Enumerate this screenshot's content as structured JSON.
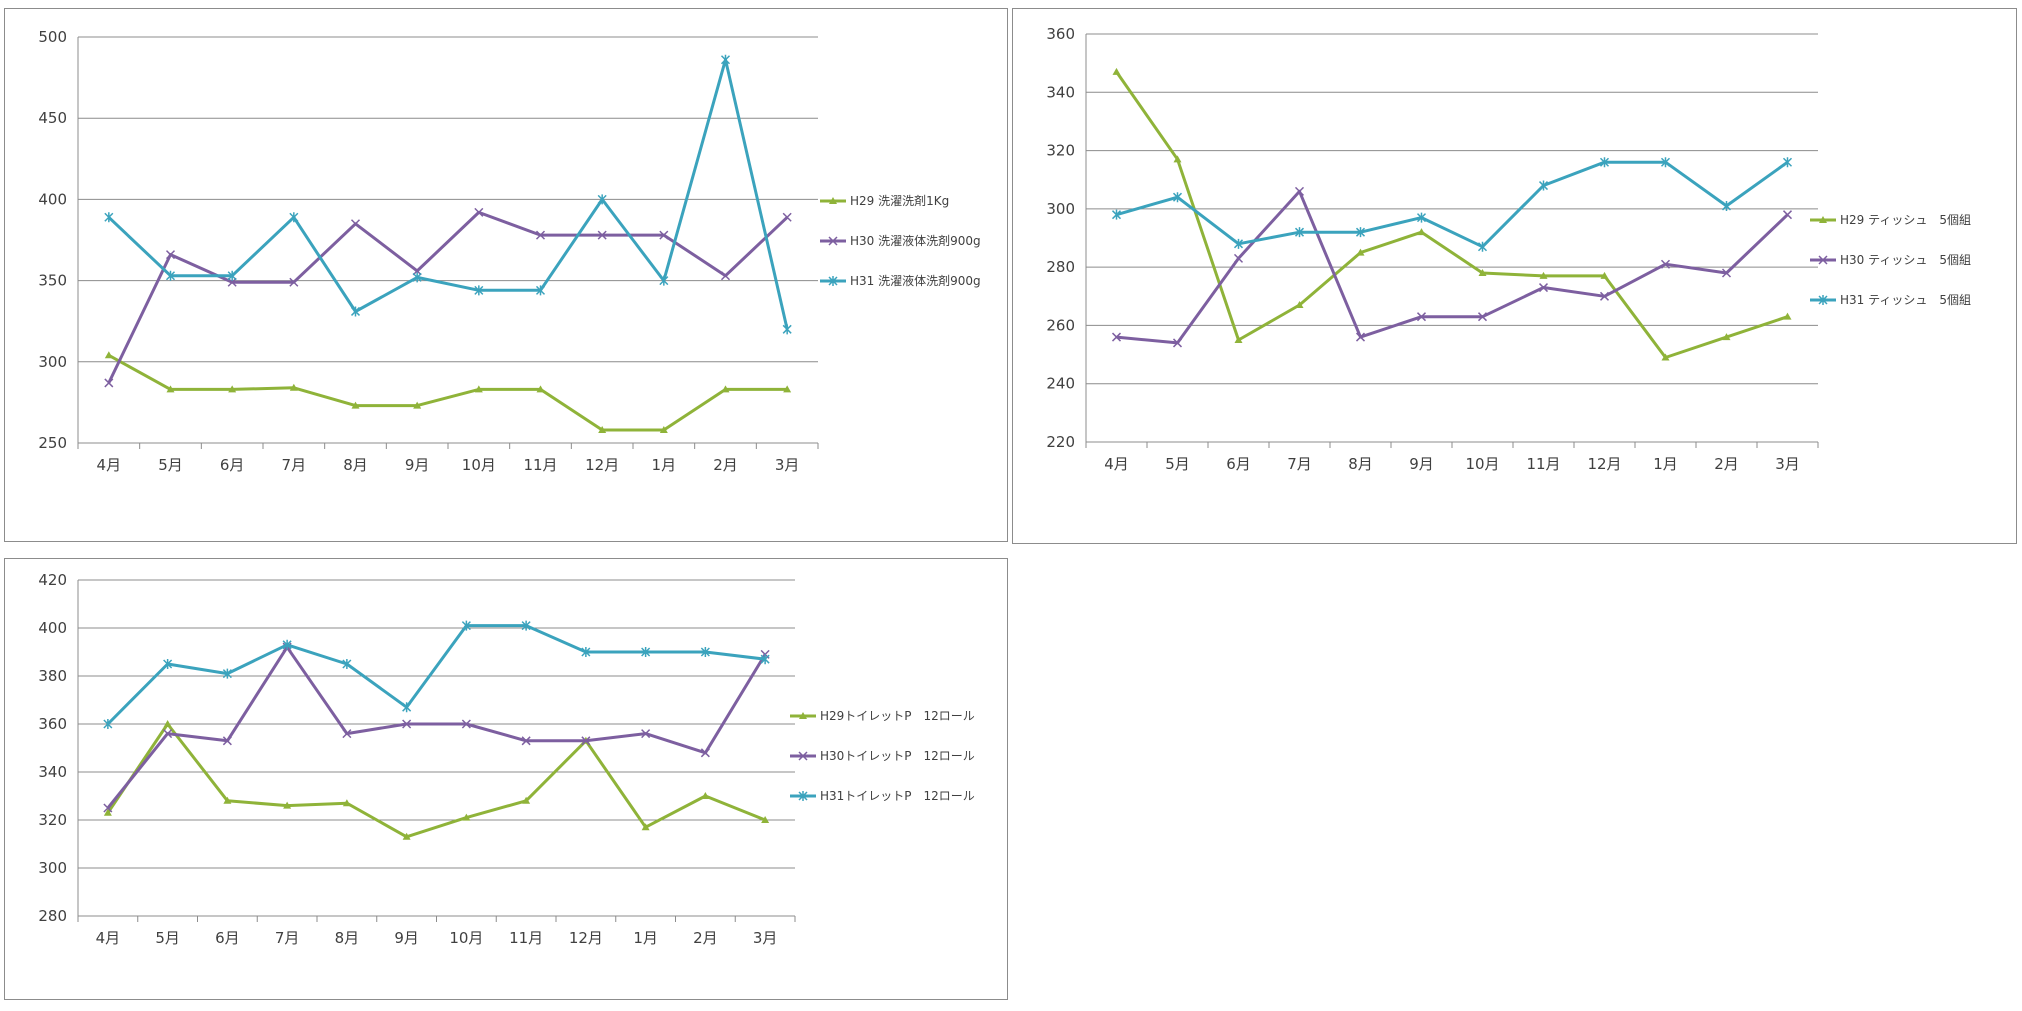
{
  "chart_data": [
    {
      "type": "line",
      "categories": [
        "4月",
        "5月",
        "6月",
        "7月",
        "8月",
        "9月",
        "10月",
        "11月",
        "12月",
        "1月",
        "2月",
        "3月"
      ],
      "ylim": [
        250,
        500
      ],
      "yticks": [
        "250",
        "300",
        "350",
        "400",
        "450",
        "500"
      ],
      "grid": true,
      "legend_position": "right",
      "series": [
        {
          "name": "H29 洗濯洗剤1Kg",
          "color": "#8fb339",
          "marker": "triangle",
          "values": [
            304,
            283,
            283,
            284,
            273,
            273,
            283,
            283,
            258,
            258,
            283,
            283
          ]
        },
        {
          "name": "H30 洗濯液体洗剤900g",
          "color": "#7d5fa0",
          "marker": "x",
          "values": [
            287,
            366,
            349,
            349,
            385,
            356,
            392,
            378,
            378,
            378,
            353,
            389
          ]
        },
        {
          "name": "H31 洗濯液体洗剤900g",
          "color": "#3ba3bd",
          "marker": "star",
          "values": [
            389,
            353,
            353,
            389,
            331,
            352,
            344,
            344,
            400,
            350,
            486,
            320
          ]
        }
      ]
    },
    {
      "type": "line",
      "categories": [
        "4月",
        "5月",
        "6月",
        "7月",
        "8月",
        "9月",
        "10月",
        "11月",
        "12月",
        "1月",
        "2月",
        "3月"
      ],
      "ylim": [
        220,
        360
      ],
      "yticks": [
        "220",
        "240",
        "260",
        "280",
        "300",
        "320",
        "340",
        "360"
      ],
      "grid": true,
      "legend_position": "right",
      "series": [
        {
          "name": "H29 ティッシュ　5個組",
          "color": "#8fb339",
          "marker": "triangle",
          "values": [
            347,
            317,
            255,
            267,
            285,
            292,
            278,
            277,
            277,
            249,
            256,
            263
          ]
        },
        {
          "name": "H30 ティッシュ　5個組",
          "color": "#7d5fa0",
          "marker": "x",
          "values": [
            256,
            254,
            283,
            306,
            256,
            263,
            263,
            273,
            270,
            281,
            278,
            298
          ]
        },
        {
          "name": "H31 ティッシュ　5個組",
          "color": "#3ba3bd",
          "marker": "star",
          "values": [
            298,
            304,
            288,
            292,
            292,
            297,
            287,
            308,
            316,
            316,
            301,
            316
          ]
        }
      ]
    },
    {
      "type": "line",
      "categories": [
        "4月",
        "5月",
        "6月",
        "7月",
        "8月",
        "9月",
        "10月",
        "11月",
        "12月",
        "1月",
        "2月",
        "3月"
      ],
      "ylim": [
        280,
        420
      ],
      "yticks": [
        "280",
        "300",
        "320",
        "340",
        "360",
        "380",
        "400",
        "420"
      ],
      "grid": true,
      "legend_position": "right",
      "series": [
        {
          "name": "H29トイレットP　12ロール",
          "color": "#8fb339",
          "marker": "triangle",
          "values": [
            323,
            360,
            328,
            326,
            327,
            313,
            321,
            328,
            353,
            317,
            330,
            320
          ]
        },
        {
          "name": "H30トイレットP　12ロール",
          "color": "#7d5fa0",
          "marker": "x",
          "values": [
            325,
            356,
            353,
            392,
            356,
            360,
            360,
            353,
            353,
            356,
            348,
            389
          ]
        },
        {
          "name": "H31トイレットP　12ロール",
          "color": "#3ba3bd",
          "marker": "star",
          "values": [
            360,
            385,
            381,
            393,
            385,
            367,
            401,
            401,
            390,
            390,
            390,
            387
          ]
        }
      ]
    }
  ]
}
